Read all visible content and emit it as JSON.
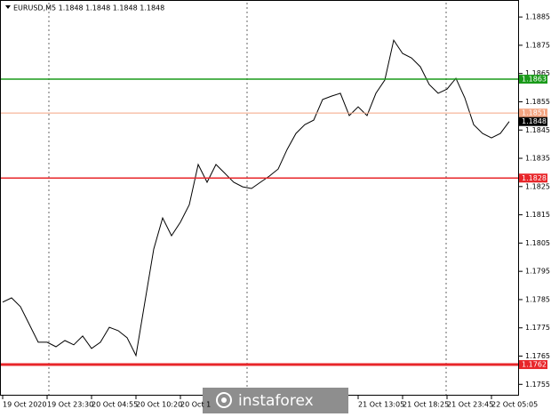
{
  "chart_data": {
    "type": "line",
    "title": "EURUSD,M5  1.1848 1.1848 1.1848 1.1848",
    "watermark": "instaforex",
    "categories": [
      "19 Oct 2020",
      null,
      null,
      null,
      null,
      "19 Oct 23:30",
      null,
      null,
      null,
      null,
      "20 Oct 04:55",
      null,
      null,
      null,
      null,
      "20 Oct 10:20",
      null,
      null,
      null,
      null,
      "20 Oct 1",
      null,
      null,
      null,
      null,
      null,
      null,
      null,
      null,
      null,
      null,
      null,
      null,
      null,
      null,
      null,
      null,
      null,
      null,
      null,
      "21 Oct 13:05",
      null,
      null,
      null,
      null,
      "21 Oct 18:25",
      null,
      null,
      null,
      null,
      "21 Oct 23:45",
      null,
      null,
      null,
      null,
      "22 Oct 05:05",
      null,
      null
    ],
    "series": [
      {
        "name": "EURUSD",
        "color": "#000000",
        "values": [
          1.17841,
          1.17856,
          1.17825,
          1.17762,
          1.17699,
          1.17699,
          1.17683,
          1.17705,
          1.1769,
          1.17721,
          1.17677,
          1.17699,
          1.17752,
          1.1774,
          1.17715,
          1.17652,
          1.17841,
          1.18029,
          1.18139,
          1.18076,
          1.18124,
          1.18186,
          1.18328,
          1.18265,
          1.18328,
          1.18297,
          1.18265,
          1.18249,
          1.18243,
          1.18265,
          1.18287,
          1.18312,
          1.18381,
          1.18438,
          1.18469,
          1.18485,
          1.18558,
          1.1857,
          1.1858,
          1.18501,
          1.18532,
          1.18501,
          1.1858,
          1.18627,
          1.18768,
          1.18721,
          1.18705,
          1.18674,
          1.18611,
          1.1858,
          1.18595,
          1.18633,
          1.18564,
          1.18469,
          1.18438,
          1.18422,
          1.18438,
          1.1848
        ]
      }
    ],
    "ylim": [
      1.1751,
      1.18885
    ],
    "yticks": [
      1.1885,
      1.1875,
      1.1865,
      1.1855,
      1.1845,
      1.1835,
      1.1825,
      1.1815,
      1.1805,
      1.1795,
      1.1785,
      1.1775,
      1.1765,
      1.1755
    ],
    "price_lines": [
      {
        "value": 1.1863,
        "color": "#1a9a1a",
        "width": 1.5
      },
      {
        "value": 1.1851,
        "color": "#f4a582",
        "width": 1
      },
      {
        "value": 1.1828,
        "color": "#e8262a",
        "width": 1.5
      },
      {
        "value": 1.1762,
        "color": "#e8262a",
        "width": 3
      }
    ],
    "last_price": 1.1848
  }
}
